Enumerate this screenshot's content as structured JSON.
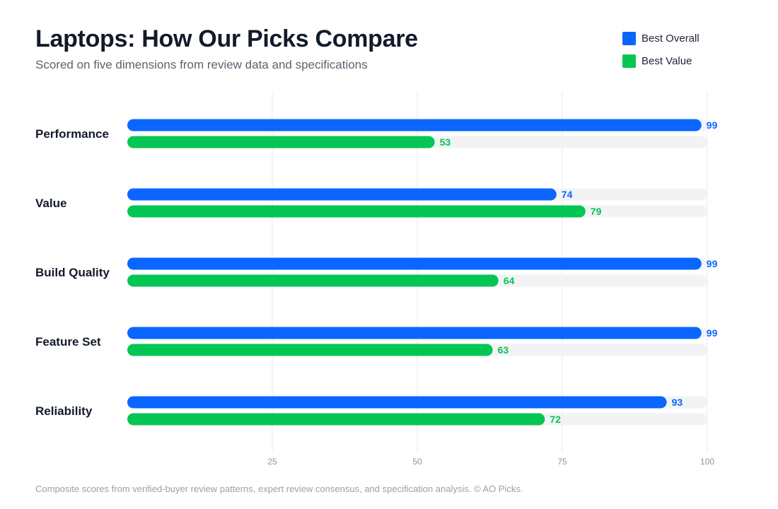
{
  "header": {
    "title": "Laptops: How Our Picks Compare",
    "subtitle": "Scored on five dimensions from review data and specifications"
  },
  "legend": [
    {
      "label": "Best Overall",
      "color": "#0a66ff"
    },
    {
      "label": "Best Value",
      "color": "#05c652"
    }
  ],
  "chart_data": {
    "type": "bar",
    "orientation": "horizontal",
    "categories": [
      "Performance",
      "Value",
      "Build Quality",
      "Feature Set",
      "Reliability"
    ],
    "series": [
      {
        "name": "Best Overall",
        "color": "#0a66ff",
        "values": [
          99,
          74,
          99,
          99,
          93
        ]
      },
      {
        "name": "Best Value",
        "color": "#05c652",
        "values": [
          53,
          79,
          64,
          63,
          72
        ]
      }
    ],
    "xlim": [
      0,
      100
    ],
    "xticks": [
      25,
      50,
      75,
      100
    ],
    "grid": true,
    "legend_position": "top-right",
    "data_labels": true
  },
  "footer": {
    "note": "Composite scores from verified-buyer review patterns, expert review consensus, and specification analysis. © AO Picks."
  }
}
